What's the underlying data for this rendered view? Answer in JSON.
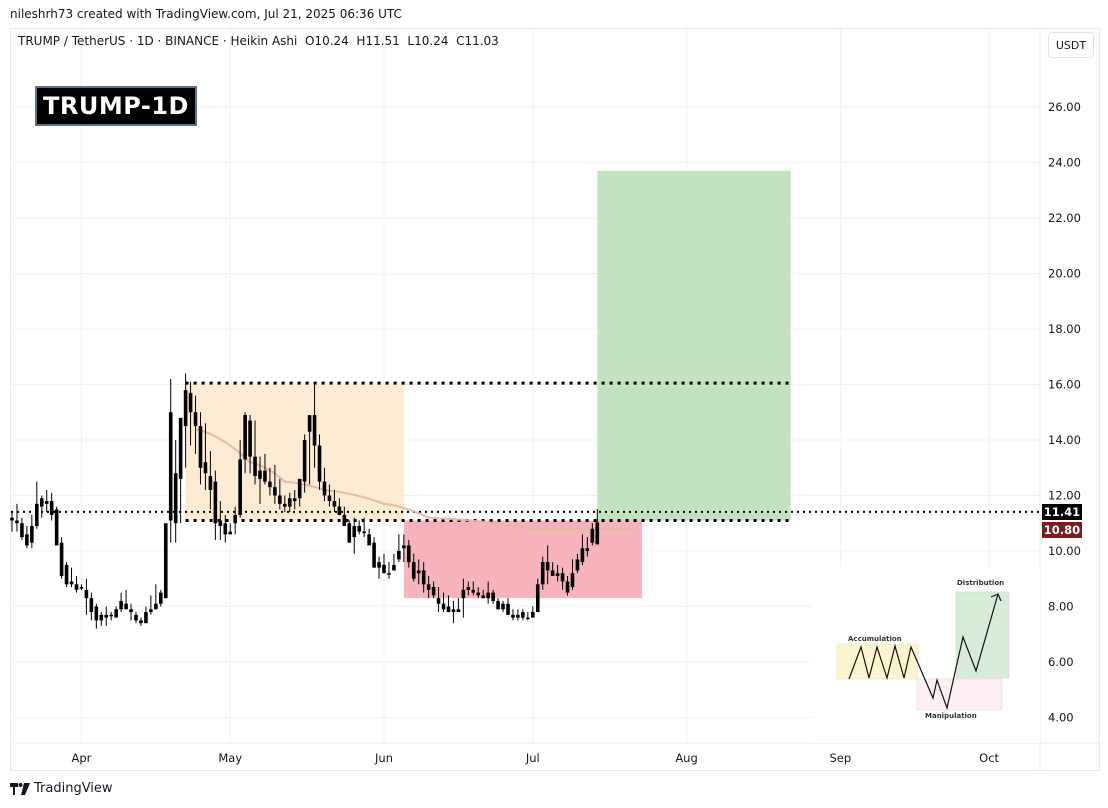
{
  "header": {
    "credit": "nileshrh73 created with TradingView.com, Jul 21, 2025 06:36 UTC",
    "legend": "TRUMP / TetherUS · 1D · BINANCE · Heikin Ashi  O10.24  H11.51  L10.24  C11.03",
    "symbol": "TRUMP / TetherUS",
    "interval": "1D",
    "exchange": "BINANCE",
    "chart_style": "Heikin Ashi",
    "ohlc": {
      "open": "10.24",
      "high": "11.51",
      "low": "10.24",
      "close": "11.03"
    }
  },
  "badge": {
    "label": "TRUMP-1D"
  },
  "currency_button": {
    "label": "USDT"
  },
  "price_tags": {
    "last": {
      "value": "11.41",
      "bg": "#000000"
    },
    "ema": {
      "value": "10.80",
      "bg": "#7b1c20"
    }
  },
  "footer": {
    "brand": "TradingView"
  },
  "y_axis": {
    "ticks": [
      "26.00",
      "24.00",
      "22.00",
      "20.00",
      "18.00",
      "16.00",
      "14.00",
      "12.00",
      "10.00",
      "8.00",
      "6.00",
      "4.00"
    ]
  },
  "x_axis": {
    "ticks": [
      "Apr",
      "May",
      "Jun",
      "Jul",
      "Aug",
      "Sep",
      "Oct"
    ]
  },
  "inset": {
    "labels": {
      "accumulation": "Accumulation",
      "manipulation": "Manipulation",
      "distribution": "Distribution"
    }
  },
  "colors": {
    "candle": "#000000",
    "accumulation_zone": "#fdebd3",
    "manipulation_zone": "#f7b4bc",
    "target_zone": "#c3e2c2",
    "ema_line": "#e3b7a6",
    "grid": "#f0f0f0"
  },
  "chart_data": {
    "type": "candlestick",
    "title": "TRUMP / TetherUS · 1D · BINANCE · Heikin Ashi",
    "xlabel": "",
    "ylabel": "USDT",
    "ylim": [
      3.2,
      28.5
    ],
    "x_ticks": [
      "Apr",
      "May",
      "Jun",
      "Jul",
      "Aug",
      "Sep",
      "Oct"
    ],
    "y_ticks": [
      4,
      6,
      8,
      10,
      12,
      14,
      16,
      18,
      20,
      22,
      24,
      26
    ],
    "grid": true,
    "legend_position": "none",
    "last_ohlc": {
      "open": 10.24,
      "high": 11.51,
      "low": 10.24,
      "close": 11.03
    },
    "price_labels": {
      "last_price": 11.41,
      "ema": 10.8
    },
    "candles_start_date": "2025-03-18",
    "candles": [
      [
        11.2,
        11.4,
        10.7,
        11.1
      ],
      [
        11.1,
        11.7,
        10.7,
        11.0
      ],
      [
        11.0,
        11.2,
        10.4,
        10.5
      ],
      [
        10.6,
        10.9,
        10.1,
        10.2
      ],
      [
        10.3,
        11.3,
        10.1,
        10.9
      ],
      [
        10.9,
        12.5,
        10.8,
        11.7
      ],
      [
        11.6,
        12.0,
        11.2,
        11.9
      ],
      [
        11.8,
        12.2,
        11.4,
        11.7
      ],
      [
        11.8,
        12.1,
        11.1,
        11.3
      ],
      [
        11.5,
        11.6,
        10.4,
        10.2
      ],
      [
        10.3,
        10.5,
        9.0,
        9.1
      ],
      [
        9.5,
        9.6,
        8.7,
        8.8
      ],
      [
        8.9,
        9.4,
        8.7,
        8.8
      ],
      [
        8.8,
        9.1,
        8.5,
        8.6
      ],
      [
        8.7,
        8.8,
        8.6,
        8.7
      ],
      [
        8.6,
        9.0,
        7.7,
        8.3
      ],
      [
        8.3,
        8.5,
        7.5,
        7.8
      ],
      [
        8.0,
        8.1,
        7.2,
        7.5
      ],
      [
        7.5,
        7.8,
        7.3,
        7.7
      ],
      [
        7.7,
        8.0,
        7.3,
        7.6
      ],
      [
        7.7,
        7.8,
        7.5,
        7.7
      ],
      [
        7.6,
        8.0,
        7.6,
        7.9
      ],
      [
        7.9,
        8.5,
        7.8,
        8.2
      ],
      [
        8.1,
        8.6,
        7.9,
        7.9
      ],
      [
        7.9,
        8.1,
        7.5,
        7.8
      ],
      [
        7.7,
        7.8,
        7.4,
        7.5
      ],
      [
        7.5,
        7.6,
        7.3,
        7.4
      ],
      [
        7.4,
        8.0,
        7.4,
        7.8
      ],
      [
        7.8,
        8.4,
        7.7,
        7.9
      ],
      [
        7.9,
        8.8,
        7.9,
        8.1
      ],
      [
        8.1,
        8.6,
        8.0,
        8.5
      ],
      [
        8.3,
        9.9,
        8.3,
        11.0
      ],
      [
        11.1,
        16.2,
        10.3,
        15.0
      ],
      [
        11.0,
        14.0,
        10.3,
        12.8
      ],
      [
        12.6,
        13.5,
        11.0,
        14.8
      ],
      [
        14.5,
        16.4,
        13.0,
        15.8
      ],
      [
        15.7,
        16.1,
        13.8,
        15.0
      ],
      [
        15.0,
        15.6,
        13.5,
        14.5
      ],
      [
        14.5,
        15.0,
        12.4,
        13.0
      ],
      [
        13.2,
        14.6,
        12.2,
        12.8
      ],
      [
        12.7,
        13.6,
        11.5,
        12.2
      ],
      [
        12.5,
        12.9,
        10.4,
        11.0
      ],
      [
        11.1,
        11.8,
        10.4,
        10.9
      ],
      [
        11.0,
        11.3,
        10.3,
        10.6
      ],
      [
        10.7,
        11.0,
        10.6,
        10.6
      ],
      [
        11.0,
        11.6,
        10.6,
        11.3
      ],
      [
        11.3,
        14.0,
        11.2,
        13.3
      ],
      [
        13.3,
        15.0,
        12.8,
        14.9
      ],
      [
        14.7,
        14.9,
        12.8,
        13.4
      ],
      [
        13.4,
        14.7,
        12.4,
        12.7
      ],
      [
        12.6,
        13.4,
        11.7,
        12.9
      ],
      [
        12.9,
        13.5,
        12.4,
        12.5
      ],
      [
        12.5,
        13.0,
        12.0,
        12.3
      ],
      [
        12.3,
        13.1,
        11.7,
        12.0
      ],
      [
        12.0,
        12.6,
        11.5,
        11.7
      ],
      [
        11.7,
        12.0,
        11.4,
        11.6
      ],
      [
        11.6,
        12.1,
        11.4,
        11.9
      ],
      [
        11.8,
        12.2,
        11.5,
        11.9
      ],
      [
        11.9,
        12.5,
        11.6,
        12.6
      ],
      [
        12.5,
        14.2,
        12.1,
        14.0
      ],
      [
        14.3,
        14.8,
        12.4,
        14.9
      ],
      [
        14.9,
        16.0,
        13.0,
        13.8
      ],
      [
        13.8,
        14.2,
        12.2,
        12.5
      ],
      [
        12.5,
        13.0,
        11.8,
        12.0
      ],
      [
        12.0,
        12.4,
        11.6,
        11.8
      ],
      [
        11.8,
        12.2,
        11.4,
        11.6
      ],
      [
        11.6,
        11.9,
        11.3,
        11.3
      ],
      [
        11.3,
        11.6,
        10.9,
        10.9
      ],
      [
        11.0,
        11.1,
        10.4,
        10.3
      ],
      [
        10.5,
        11.2,
        9.9,
        10.9
      ],
      [
        10.9,
        11.1,
        10.6,
        10.7
      ],
      [
        10.7,
        11.2,
        10.5,
        10.7
      ],
      [
        10.6,
        10.8,
        10.3,
        10.2
      ],
      [
        10.3,
        10.5,
        9.4,
        9.4
      ],
      [
        9.6,
        9.8,
        9.0,
        9.4
      ],
      [
        9.5,
        9.9,
        9.2,
        9.2
      ],
      [
        9.2,
        9.6,
        9.0,
        9.2
      ],
      [
        9.3,
        9.9,
        9.3,
        9.5
      ],
      [
        9.7,
        10.6,
        9.6,
        10.0
      ],
      [
        10.1,
        10.6,
        9.6,
        10.2
      ],
      [
        10.2,
        10.4,
        9.4,
        9.6
      ],
      [
        9.6,
        9.9,
        8.9,
        9.0
      ],
      [
        9.2,
        9.7,
        8.8,
        9.3
      ],
      [
        9.3,
        9.6,
        8.5,
        8.8
      ],
      [
        8.8,
        9.1,
        8.3,
        8.6
      ],
      [
        8.7,
        8.9,
        8.3,
        8.4
      ],
      [
        8.3,
        8.7,
        7.8,
        8.1
      ],
      [
        8.1,
        8.5,
        7.8,
        7.9
      ],
      [
        8.0,
        8.4,
        7.8,
        7.8
      ],
      [
        7.8,
        8.2,
        7.4,
        7.9
      ],
      [
        7.9,
        8.3,
        7.8,
        7.8
      ],
      [
        8.3,
        9.0,
        7.6,
        8.6
      ],
      [
        8.6,
        8.9,
        8.4,
        8.7
      ],
      [
        8.5,
        8.9,
        8.4,
        8.6
      ],
      [
        8.5,
        8.7,
        8.3,
        8.4
      ],
      [
        8.4,
        8.6,
        8.3,
        8.3
      ],
      [
        8.3,
        8.9,
        8.1,
        8.5
      ],
      [
        8.5,
        8.6,
        8.1,
        8.2
      ],
      [
        8.2,
        8.3,
        7.9,
        7.9
      ],
      [
        7.9,
        8.2,
        7.8,
        8.1
      ],
      [
        8.1,
        8.3,
        7.7,
        7.7
      ],
      [
        7.7,
        7.9,
        7.5,
        7.6
      ],
      [
        7.6,
        7.9,
        7.5,
        7.7
      ],
      [
        7.8,
        7.9,
        7.5,
        7.6
      ],
      [
        7.6,
        7.8,
        7.5,
        7.6
      ],
      [
        7.6,
        8.0,
        7.6,
        7.8
      ],
      [
        7.8,
        9.0,
        7.8,
        8.8
      ],
      [
        8.8,
        9.8,
        8.6,
        9.6
      ],
      [
        9.6,
        10.2,
        8.8,
        9.3
      ],
      [
        9.3,
        9.6,
        9.1,
        9.1
      ],
      [
        9.1,
        9.5,
        8.9,
        9.2
      ],
      [
        9.2,
        9.4,
        8.6,
        8.9
      ],
      [
        8.9,
        9.1,
        8.4,
        8.5
      ],
      [
        8.7,
        9.7,
        8.6,
        9.2
      ],
      [
        9.3,
        9.9,
        9.2,
        9.7
      ],
      [
        9.6,
        10.6,
        9.5,
        10.1
      ],
      [
        10.0,
        10.5,
        9.8,
        10.1
      ],
      [
        10.3,
        11.0,
        10.2,
        10.8
      ],
      [
        10.24,
        11.51,
        10.24,
        11.03
      ]
    ],
    "ema_line": [
      {
        "date": "Apr 24",
        "price": 14.4
      },
      {
        "date": "May 5",
        "price": 13.2
      },
      {
        "date": "May 12",
        "price": 12.5
      },
      {
        "date": "May 20",
        "price": 12.2
      },
      {
        "date": "Jun 1",
        "price": 11.7
      },
      {
        "date": "Jun 10",
        "price": 11.2
      },
      {
        "date": "Jul 1",
        "price": 10.8
      },
      {
        "date": "Jul 21",
        "price": 10.8
      }
    ],
    "zones": [
      {
        "name": "accumulation-range",
        "from": "Apr 22",
        "to": "Jun 5",
        "low": 11.1,
        "high": 16.0,
        "color": "#fdebd3"
      },
      {
        "name": "manipulation-range",
        "from": "Jun 5",
        "to": "Jul 23",
        "low": 8.3,
        "high": 11.1,
        "color": "#f7b4bc"
      },
      {
        "name": "distribution-target",
        "from": "Jul 14",
        "to": "Aug 22",
        "low": 11.1,
        "high": 23.7,
        "color": "#c3e2c2"
      }
    ],
    "levels": [
      {
        "name": "range-high",
        "price": 16.05,
        "style": "dotted"
      },
      {
        "name": "range-low",
        "price": 11.1,
        "style": "dotted"
      },
      {
        "name": "last-price",
        "price": 11.41,
        "style": "dotted"
      }
    ],
    "annotations": [
      "TRUMP-1D",
      "Accumulation",
      "Manipulation",
      "Distribution"
    ]
  }
}
